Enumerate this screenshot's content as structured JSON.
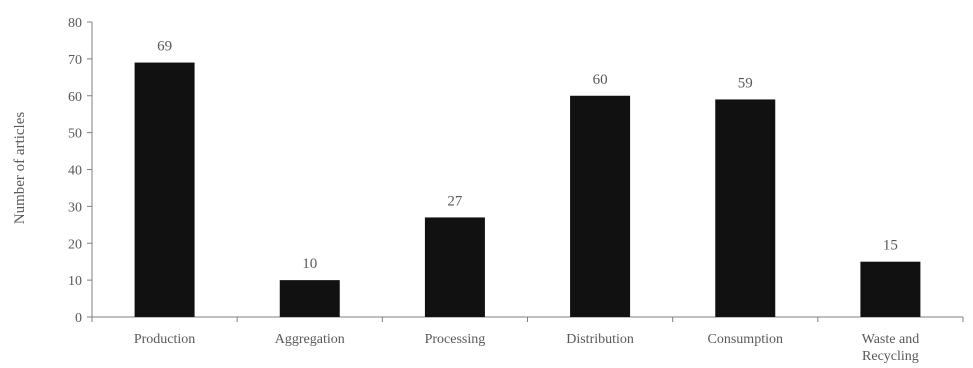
{
  "chart_data": {
    "type": "bar",
    "title": "",
    "xlabel": "",
    "ylabel": "Number of articles",
    "categories": [
      "Production",
      "Aggregation",
      "Processing",
      "Distribution",
      "Consumption",
      "Waste and Recycling"
    ],
    "category_lines": [
      [
        "Production"
      ],
      [
        "Aggregation"
      ],
      [
        "Processing"
      ],
      [
        "Distribution"
      ],
      [
        "Consumption"
      ],
      [
        "Waste and",
        "Recycling"
      ]
    ],
    "values": [
      69,
      10,
      27,
      60,
      59,
      15
    ],
    "data_labels": [
      "69",
      "10",
      "27",
      "60",
      "59",
      "15"
    ],
    "ylim": [
      0,
      80
    ],
    "yticks": [
      0,
      10,
      20,
      30,
      40,
      50,
      60,
      70,
      80
    ],
    "ytick_labels": [
      "0",
      "10",
      "20",
      "30",
      "40",
      "50",
      "60",
      "70",
      "80"
    ],
    "bar_color": "#111111",
    "axis_color": "#7f7f7f",
    "text_color": "#595959",
    "grid": false,
    "legend": "none"
  }
}
